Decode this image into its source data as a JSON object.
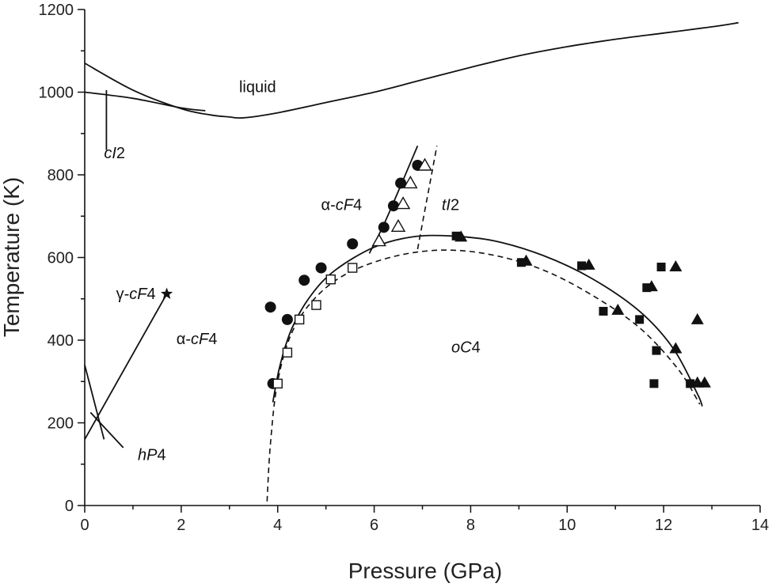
{
  "chart_data": {
    "type": "scatter",
    "xlabel": "Pressure (GPa)",
    "ylabel": "Temperature (K)",
    "xlim": [
      0,
      14
    ],
    "ylim": [
      0,
      1200
    ],
    "x_ticks": [
      0,
      2,
      4,
      6,
      8,
      10,
      12,
      14
    ],
    "y_ticks": [
      0,
      200,
      400,
      600,
      800,
      1000,
      1200
    ],
    "x_minor_step": 1,
    "y_minor_step": 100,
    "grid": false,
    "region_labels": [
      {
        "text": "liquid",
        "x": 3.2,
        "y": 1000
      },
      {
        "text": "cI2",
        "x": 0.4,
        "y": 840
      },
      {
        "text": "α-cF4",
        "x": 4.9,
        "y": 715
      },
      {
        "text": "tI2",
        "x": 7.4,
        "y": 715
      },
      {
        "text": "γ-cF4",
        "x": 0.65,
        "y": 500
      },
      {
        "text": "α-cF4",
        "x": 1.9,
        "y": 390
      },
      {
        "text": "oC4",
        "x": 7.6,
        "y": 370
      },
      {
        "text": "hP4",
        "x": 1.1,
        "y": 110
      }
    ],
    "solid_curves": [
      {
        "points": [
          [
            0,
            1070
          ],
          [
            1,
            1005
          ],
          [
            2,
            960
          ],
          [
            2.6,
            945
          ],
          [
            3.0,
            940
          ],
          [
            3.3,
            938
          ],
          [
            4,
            950
          ],
          [
            5,
            975
          ],
          [
            6,
            1000
          ],
          [
            7,
            1030
          ],
          [
            8,
            1060
          ],
          [
            9,
            1088
          ],
          [
            10,
            1110
          ],
          [
            11,
            1128
          ],
          [
            12,
            1143
          ],
          [
            13,
            1158
          ],
          [
            13.55,
            1168
          ]
        ]
      },
      {
        "points": [
          [
            0,
            1000
          ],
          [
            1,
            985
          ],
          [
            2,
            962
          ],
          [
            2.5,
            955
          ]
        ]
      },
      {
        "points": [
          [
            0.45,
            1005
          ],
          [
            0.45,
            860
          ]
        ]
      },
      {
        "points": [
          [
            0,
            160
          ],
          [
            1.7,
            512
          ]
        ]
      },
      {
        "points": [
          [
            0,
            340
          ],
          [
            0.4,
            160
          ]
        ]
      },
      {
        "points": [
          [
            0.12,
            225
          ],
          [
            0.8,
            140
          ]
        ]
      },
      {
        "points": [
          [
            3.9,
            250
          ],
          [
            4.05,
            340
          ],
          [
            4.3,
            430
          ],
          [
            4.7,
            510
          ],
          [
            5.2,
            570
          ],
          [
            6.0,
            625
          ],
          [
            6.8,
            650
          ],
          [
            7.6,
            652
          ],
          [
            8.5,
            640
          ],
          [
            9.5,
            605
          ],
          [
            10.5,
            550
          ],
          [
            11.5,
            470
          ],
          [
            12.2,
            380
          ],
          [
            12.7,
            270
          ],
          [
            12.8,
            240
          ]
        ]
      },
      {
        "points": [
          [
            5.9,
            610
          ],
          [
            6.2,
            680
          ],
          [
            6.5,
            760
          ],
          [
            6.9,
            870
          ]
        ]
      }
    ],
    "dashed_curves": [
      {
        "points": [
          [
            3.78,
            10
          ],
          [
            3.85,
            150
          ],
          [
            4.0,
            300
          ],
          [
            4.3,
            420
          ],
          [
            4.8,
            505
          ],
          [
            5.5,
            565
          ],
          [
            6.5,
            605
          ],
          [
            7.5,
            618
          ],
          [
            8.5,
            605
          ],
          [
            9.5,
            570
          ],
          [
            10.5,
            510
          ],
          [
            11.5,
            430
          ],
          [
            12.3,
            330
          ],
          [
            12.75,
            245
          ]
        ]
      },
      {
        "points": [
          [
            6.9,
            620
          ],
          [
            7.3,
            870
          ]
        ]
      }
    ],
    "series": [
      {
        "name": "",
        "marker": "filled-circle",
        "values": [
          [
            3.85,
            480
          ],
          [
            3.9,
            295
          ],
          [
            4.2,
            450
          ],
          [
            4.55,
            545
          ],
          [
            4.9,
            575
          ],
          [
            5.55,
            633
          ],
          [
            6.2,
            673
          ],
          [
            6.4,
            725
          ],
          [
            6.55,
            780
          ],
          [
            6.9,
            823
          ]
        ]
      },
      {
        "name": "",
        "marker": "open-square",
        "values": [
          [
            4.0,
            295
          ],
          [
            4.2,
            370
          ],
          [
            4.45,
            450
          ],
          [
            4.8,
            485
          ],
          [
            5.1,
            547
          ],
          [
            5.55,
            575
          ]
        ]
      },
      {
        "name": "",
        "marker": "open-triangle",
        "values": [
          [
            6.1,
            640
          ],
          [
            6.5,
            675
          ],
          [
            6.6,
            730
          ],
          [
            6.75,
            780
          ],
          [
            7.05,
            823
          ]
        ]
      },
      {
        "name": "",
        "marker": "filled-square",
        "values": [
          [
            7.7,
            652
          ],
          [
            9.05,
            588
          ],
          [
            10.3,
            580
          ],
          [
            10.75,
            470
          ],
          [
            11.5,
            450
          ],
          [
            11.65,
            527
          ],
          [
            11.85,
            375
          ],
          [
            11.8,
            295
          ],
          [
            11.95,
            577
          ],
          [
            12.55,
            295
          ]
        ]
      },
      {
        "name": "",
        "marker": "filled-triangle",
        "values": [
          [
            7.8,
            650
          ],
          [
            9.15,
            592
          ],
          [
            10.45,
            582
          ],
          [
            11.05,
            473
          ],
          [
            11.75,
            530
          ],
          [
            12.25,
            578
          ],
          [
            12.25,
            380
          ],
          [
            12.7,
            450
          ],
          [
            12.7,
            297
          ],
          [
            12.85,
            297
          ]
        ]
      },
      {
        "name": "",
        "marker": "filled-star",
        "values": [
          [
            1.7,
            512
          ]
        ]
      }
    ]
  }
}
